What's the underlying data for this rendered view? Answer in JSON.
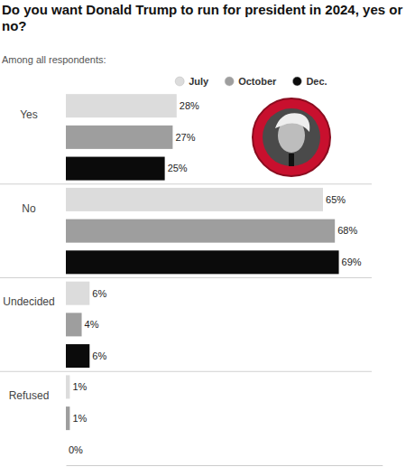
{
  "chart_data": {
    "type": "bar",
    "orientation": "horizontal",
    "title": "Do you want Donald Trump to run for president in 2024, yes or no?",
    "subtitle": "Among all respondents:",
    "categories": [
      "Yes",
      "No",
      "Undecided",
      "Refused"
    ],
    "series": [
      {
        "name": "July",
        "color": "#dcdcdc",
        "values": [
          28,
          65,
          6,
          1
        ],
        "value_labels": [
          "28%",
          "65%",
          "6%",
          "1%"
        ]
      },
      {
        "name": "October",
        "color": "#9e9e9e",
        "values": [
          27,
          68,
          4,
          1
        ],
        "value_labels": [
          "27%",
          "68%",
          "4%",
          "1%"
        ]
      },
      {
        "name": "Dec.",
        "color": "#0b0b0b",
        "values": [
          25,
          69,
          6,
          0
        ],
        "value_labels": [
          "25%",
          "69%",
          "6%",
          "0%"
        ]
      }
    ],
    "xlim": [
      0,
      80
    ],
    "xticks": [],
    "legend": "top",
    "data_labels": true,
    "tick_labels": "y",
    "grid": false
  }
}
